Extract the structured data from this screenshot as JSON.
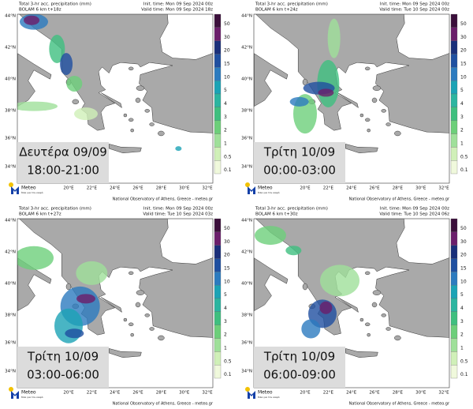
{
  "panels": [
    {
      "title": "Total 3-hr acc. precipitation (mm)",
      "model": "BOLAM 6 km t+18z",
      "init": "Init. time: Mon 09 Sep 2024 00z",
      "valid": "Valid time: Mon 09 Sep 2024 18z",
      "day": "Δευτέρα 09/09",
      "hours": "18:00-21:00"
    },
    {
      "title": "Total 3-hr acc. precipitation (mm)",
      "model": "BOLAM 6 km t+24z",
      "init": "Init. time: Mon 09 Sep 2024 00z",
      "valid": "Valid time: Tue 10 Sep 2024 00z",
      "day": "Τρίτη 10/09",
      "hours": "00:00-03:00"
    },
    {
      "title": "Total 3-hr acc. precipitation (mm)",
      "model": "BOLAM 6 km t+27z",
      "init": "Init. time: Mon 09 Sep 2024 00z",
      "valid": "Valid time: Tue 10 Sep 2024 03z",
      "day": "Τρίτη 10/09",
      "hours": "03:00-06:00"
    },
    {
      "title": "Total 3-hr acc. precipitation (mm)",
      "model": "BOLAM 6 km t+30z",
      "init": "Init. time: Mon 09 Sep 2024 00z",
      "valid": "Valid time: Tue 10 Sep 2024 06z",
      "day": "Τρίτη 10/09",
      "hours": "06:00-09:00"
    }
  ],
  "map": {
    "lat_labels": [
      "44°N",
      "42°N",
      "40°N",
      "38°N",
      "36°N",
      "34°N"
    ],
    "lon_labels": [
      "20°E",
      "22°E",
      "24°E",
      "26°E",
      "28°E",
      "30°E",
      "32°E"
    ],
    "colorbar": {
      "levels": [
        50,
        30,
        20,
        15,
        10,
        5,
        4,
        3,
        2,
        1,
        0.5,
        0.1
      ],
      "colors": [
        "#3b0f3b",
        "#6b1e6b",
        "#1a2f7a",
        "#1f4fa0",
        "#2c7bbf",
        "#1ba3b5",
        "#2bb5a0",
        "#3fbf7f",
        "#6dcf7a",
        "#9fe09a",
        "#d0f0b8",
        "#f0f9dc"
      ]
    },
    "footer": "National Observatory of Athens, Greece - meteo.gr",
    "logo": {
      "name": "Meteo",
      "slogan": "Όλα για τον καιρό"
    }
  }
}
